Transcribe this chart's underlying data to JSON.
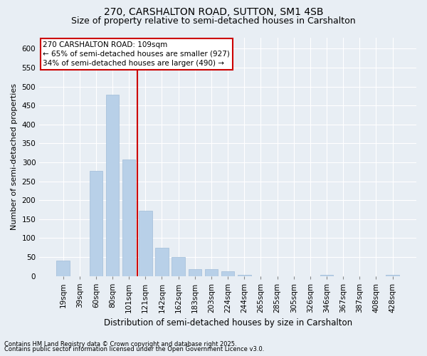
{
  "title1": "270, CARSHALTON ROAD, SUTTON, SM1 4SB",
  "title2": "Size of property relative to semi-detached houses in Carshalton",
  "xlabel": "Distribution of semi-detached houses by size in Carshalton",
  "ylabel": "Number of semi-detached properties",
  "categories": [
    "19sqm",
    "39sqm",
    "60sqm",
    "80sqm",
    "101sqm",
    "121sqm",
    "142sqm",
    "162sqm",
    "183sqm",
    "203sqm",
    "224sqm",
    "244sqm",
    "265sqm",
    "285sqm",
    "305sqm",
    "326sqm",
    "346sqm",
    "367sqm",
    "387sqm",
    "408sqm",
    "428sqm"
  ],
  "values": [
    40,
    0,
    278,
    478,
    308,
    172,
    74,
    50,
    18,
    18,
    12,
    2,
    0,
    0,
    0,
    0,
    3,
    0,
    0,
    0,
    3
  ],
  "bar_color": "#b8d0e8",
  "bar_edgecolor": "#a0bcd8",
  "vline_color": "#cc0000",
  "vline_x_index": 4,
  "annotation_text": "270 CARSHALTON ROAD: 109sqm\n← 65% of semi-detached houses are smaller (927)\n34% of semi-detached houses are larger (490) →",
  "annotation_box_facecolor": "white",
  "annotation_box_edgecolor": "#cc0000",
  "footnote1": "Contains HM Land Registry data © Crown copyright and database right 2025.",
  "footnote2": "Contains public sector information licensed under the Open Government Licence v3.0.",
  "ylim": [
    0,
    630
  ],
  "yticks": [
    0,
    50,
    100,
    150,
    200,
    250,
    300,
    350,
    400,
    450,
    500,
    550,
    600
  ],
  "bg_color": "#e8eef4",
  "plot_bg_color": "#e8eef4",
  "grid_color": "white",
  "title_fontsize": 10,
  "subtitle_fontsize": 9,
  "tick_fontsize": 7.5,
  "ylabel_fontsize": 8,
  "xlabel_fontsize": 8.5,
  "footnote_fontsize": 6.0,
  "annot_fontsize": 7.5
}
